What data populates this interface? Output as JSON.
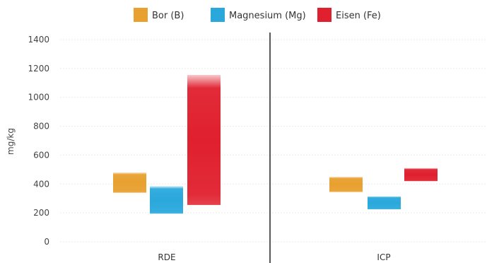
{
  "chart_data": {
    "type": "bar",
    "subtype": "floating-range",
    "ylabel": "mg/kg",
    "ylim": [
      0,
      1400
    ],
    "yticks": [
      0,
      200,
      400,
      600,
      800,
      1000,
      1200,
      1400
    ],
    "ytick_labels": [
      "0",
      "200",
      "400",
      "600",
      "800",
      "1000",
      "1200",
      "1400"
    ],
    "grid": true,
    "legend_position": "top",
    "categories": [
      "RDE",
      "ICP"
    ],
    "series": [
      {
        "name": "Bor (B)",
        "color": "#e8a030",
        "ranges": [
          [
            340,
            480
          ],
          [
            345,
            450
          ]
        ]
      },
      {
        "name": "Magnesium (Mg)",
        "color": "#2aa8dc",
        "ranges": [
          [
            195,
            385
          ],
          [
            225,
            315
          ]
        ]
      },
      {
        "name": "Eisen (Fe)",
        "color": "#e0202e",
        "ranges": [
          [
            255,
            1155
          ],
          [
            420,
            510
          ]
        ]
      }
    ]
  }
}
